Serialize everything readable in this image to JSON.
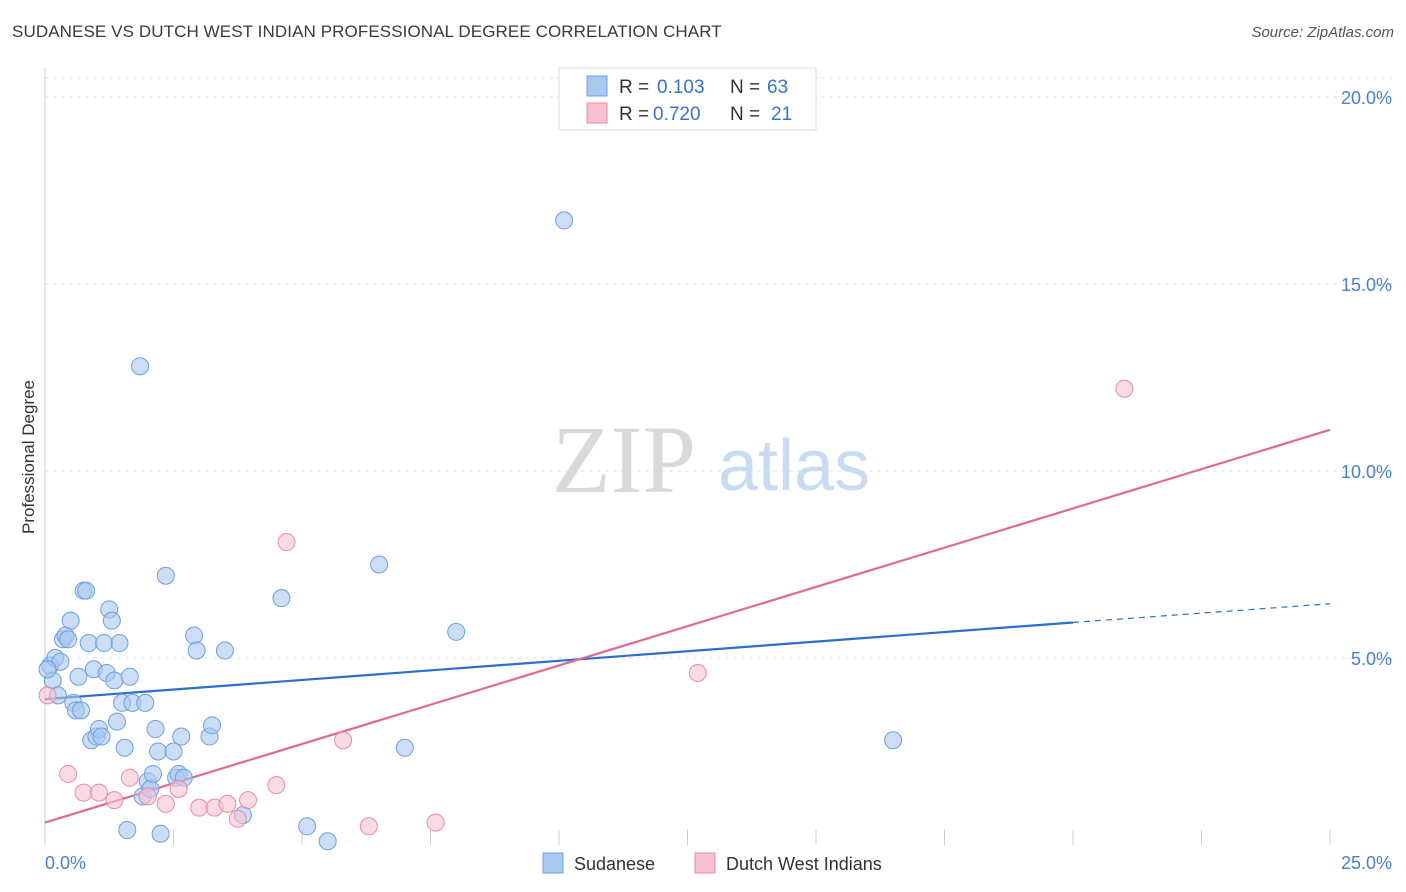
{
  "header": {
    "title": "SUDANESE VS DUTCH WEST INDIAN PROFESSIONAL DEGREE CORRELATION CHART",
    "source": "Source: ZipAtlas.com"
  },
  "watermark": {
    "zip": "ZIP",
    "atlas": "atlas"
  },
  "legend": {
    "r_label": "R =",
    "n_label": "N =",
    "rows": [
      {
        "r": "0.103",
        "n": "63",
        "color": "#a9c8f0",
        "stroke": "#6f9fdd"
      },
      {
        "r": "0.720",
        "n": "21",
        "color": "#f7c1d0",
        "stroke": "#e88aa6"
      }
    ]
  },
  "bottom_legend": [
    "Sudanese",
    "Dutch West Indians"
  ],
  "chart_data": {
    "type": "scatter",
    "title": "SUDANESE VS DUTCH WEST INDIAN PROFESSIONAL DEGREE CORRELATION CHART",
    "xlabel": "",
    "ylabel": "Professional Degree",
    "xlim": [
      0,
      25
    ],
    "ylim": [
      0,
      20
    ],
    "x_tick_labels": [
      "0.0%",
      "25.0%"
    ],
    "y_ticks": [
      5,
      10,
      15,
      20
    ],
    "y_tick_labels": [
      "5.0%",
      "10.0%",
      "15.0%",
      "20.0%"
    ],
    "grid": true,
    "legend_position": "top-center",
    "series": [
      {
        "name": "Sudanese",
        "color": "#a9c8f0",
        "stroke": "#6f9fdd",
        "trend_color": "#2d6fcc",
        "trend": {
          "x0": 0,
          "y0": 3.9,
          "x1": 20,
          "y1": 5.95,
          "dash_to": 25,
          "dash_y": 6.45
        },
        "points": [
          [
            0.1,
            4.8
          ],
          [
            0.15,
            4.4
          ],
          [
            0.2,
            5.0
          ],
          [
            0.25,
            4.0
          ],
          [
            0.3,
            4.9
          ],
          [
            0.35,
            5.5
          ],
          [
            0.4,
            5.6
          ],
          [
            0.45,
            5.5
          ],
          [
            0.5,
            6.0
          ],
          [
            0.55,
            3.8
          ],
          [
            0.6,
            3.6
          ],
          [
            0.65,
            4.5
          ],
          [
            0.7,
            3.6
          ],
          [
            0.75,
            6.8
          ],
          [
            0.8,
            6.8
          ],
          [
            0.85,
            5.4
          ],
          [
            0.9,
            2.8
          ],
          [
            0.95,
            4.7
          ],
          [
            1.0,
            2.9
          ],
          [
            1.05,
            3.1
          ],
          [
            1.1,
            2.9
          ],
          [
            1.15,
            5.4
          ],
          [
            1.2,
            4.6
          ],
          [
            1.25,
            6.3
          ],
          [
            1.3,
            6.0
          ],
          [
            1.35,
            4.4
          ],
          [
            1.4,
            3.3
          ],
          [
            1.45,
            5.4
          ],
          [
            1.5,
            3.8
          ],
          [
            1.55,
            2.6
          ],
          [
            1.6,
            0.4
          ],
          [
            1.65,
            4.5
          ],
          [
            1.7,
            3.8
          ],
          [
            1.85,
            12.8
          ],
          [
            1.9,
            1.3
          ],
          [
            1.95,
            3.8
          ],
          [
            2.0,
            1.7
          ],
          [
            2.05,
            1.5
          ],
          [
            2.1,
            1.9
          ],
          [
            2.15,
            3.1
          ],
          [
            2.2,
            2.5
          ],
          [
            2.25,
            0.3
          ],
          [
            2.35,
            7.2
          ],
          [
            2.5,
            2.5
          ],
          [
            2.55,
            1.8
          ],
          [
            2.6,
            1.9
          ],
          [
            2.65,
            2.9
          ],
          [
            2.7,
            1.8
          ],
          [
            2.9,
            5.6
          ],
          [
            2.95,
            5.2
          ],
          [
            3.2,
            2.9
          ],
          [
            3.25,
            3.2
          ],
          [
            3.5,
            5.2
          ],
          [
            3.85,
            0.8
          ],
          [
            4.6,
            6.6
          ],
          [
            5.1,
            0.5
          ],
          [
            5.5,
            0.1
          ],
          [
            6.5,
            7.5
          ],
          [
            7.0,
            2.6
          ],
          [
            8.0,
            5.7
          ],
          [
            10.1,
            16.7
          ],
          [
            16.5,
            2.8
          ],
          [
            0.05,
            4.7
          ]
        ]
      },
      {
        "name": "Dutch West Indians",
        "color": "#f7c1d0",
        "stroke": "#e88aa6",
        "trend_color": "#e06a92",
        "trend": {
          "x0": 0,
          "y0": 0.6,
          "x1": 25,
          "y1": 11.1
        },
        "points": [
          [
            0.05,
            4.0
          ],
          [
            0.45,
            1.9
          ],
          [
            0.75,
            1.4
          ],
          [
            1.05,
            1.4
          ],
          [
            1.35,
            1.2
          ],
          [
            1.65,
            1.8
          ],
          [
            2.0,
            1.3
          ],
          [
            2.35,
            1.1
          ],
          [
            2.6,
            1.5
          ],
          [
            3.0,
            1.0
          ],
          [
            3.3,
            1.0
          ],
          [
            3.55,
            1.1
          ],
          [
            3.75,
            0.7
          ],
          [
            3.95,
            1.2
          ],
          [
            4.5,
            1.6
          ],
          [
            4.7,
            8.1
          ],
          [
            5.8,
            2.8
          ],
          [
            6.3,
            0.5
          ],
          [
            7.6,
            0.6
          ],
          [
            12.7,
            4.6
          ],
          [
            21.0,
            12.2
          ]
        ]
      }
    ]
  }
}
